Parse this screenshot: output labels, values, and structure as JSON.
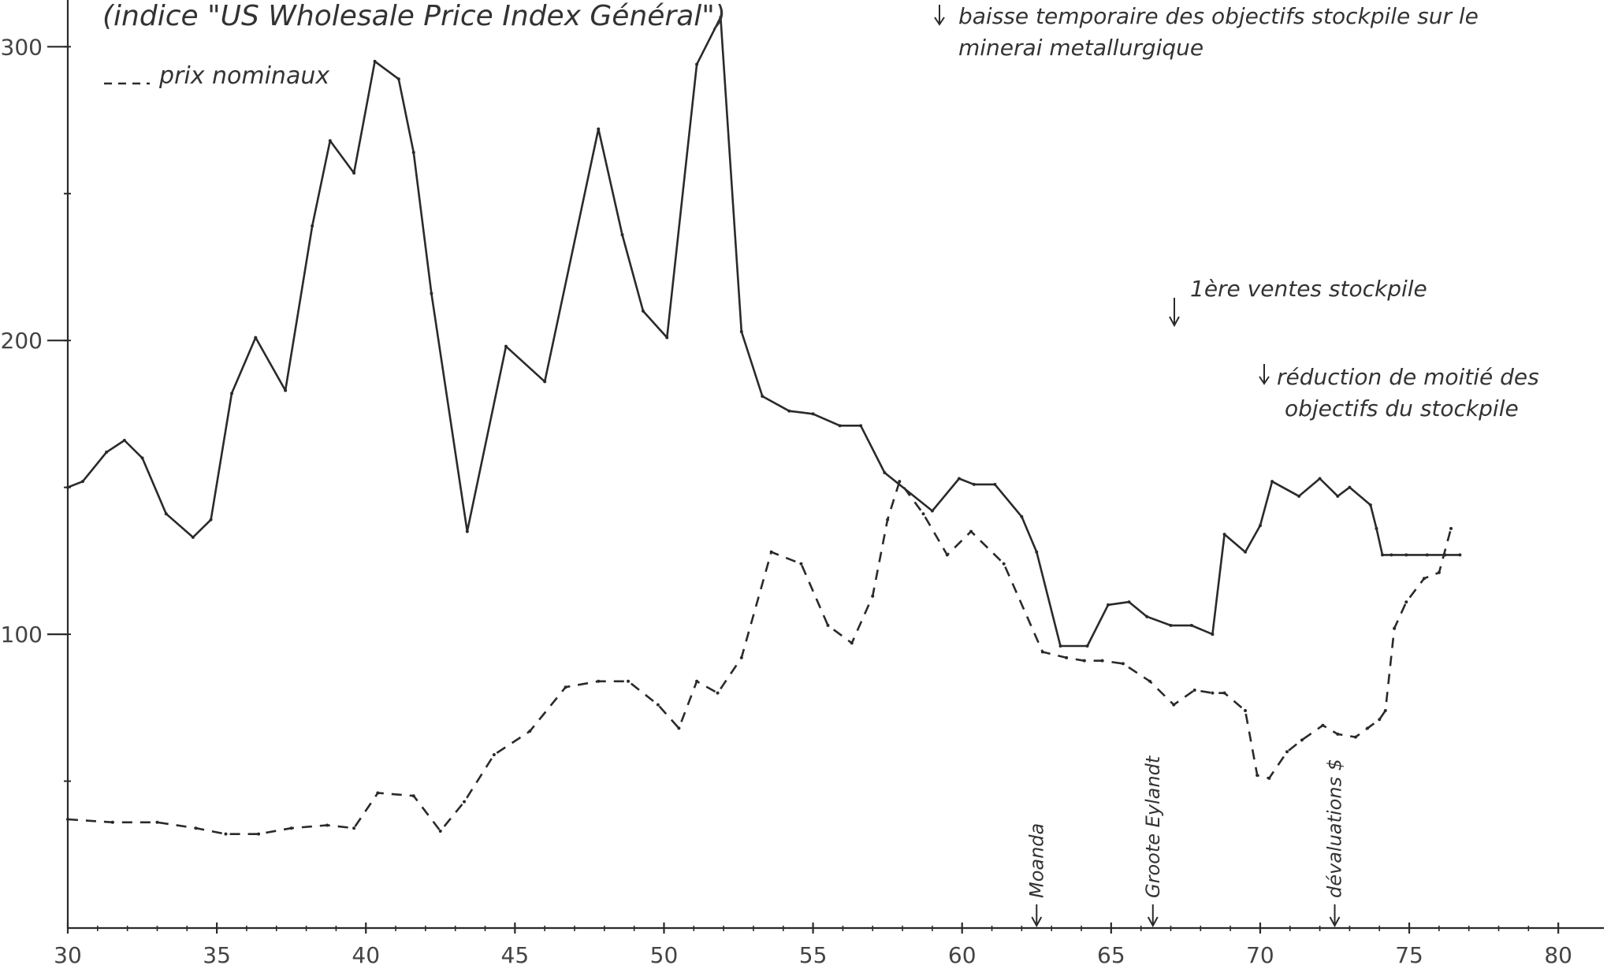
{
  "chart_data": {
    "type": "line",
    "title": "(indice \"US Wholesale Price Index Général\")",
    "xlabel": "",
    "ylabel": "",
    "xlim": [
      30,
      81
    ],
    "ylim": [
      0,
      310
    ],
    "x_ticks": [
      30,
      35,
      40,
      45,
      50,
      55,
      60,
      65,
      70,
      75,
      80
    ],
    "x_tick_labels": [
      "30",
      "35",
      "40",
      "45",
      "50",
      "55",
      "60",
      "65",
      "70",
      "75",
      "80"
    ],
    "y_ticks": [
      100,
      200,
      300
    ],
    "y_tick_labels": [
      "100",
      "200",
      "300"
    ],
    "grid": false,
    "series": [
      {
        "name": "",
        "style": "solid",
        "x": [
          30,
          30.5,
          31.3,
          31.9,
          32.5,
          33.3,
          34.2,
          34.8,
          35.5,
          36.3,
          37.3,
          38.2,
          38.8,
          39.6,
          40.3,
          41.1,
          41.6,
          42.2,
          43.4,
          44.7,
          46,
          47.8,
          48.6,
          49.3,
          50.1,
          51.1,
          51.9,
          52.6,
          53.3,
          54.2,
          55,
          55.9,
          56.6,
          57.4,
          59,
          59.9,
          60.4,
          61.1,
          62,
          62.5,
          63.3,
          64.2,
          64.9,
          65.6,
          66.2,
          67,
          67.7,
          68.4,
          68.8,
          69.5,
          70,
          70.4,
          71.3,
          72,
          72.6,
          73,
          73.7,
          73.9,
          74.1,
          74.4,
          74.9,
          75.6,
          76.2,
          76.7
        ],
        "y": [
          150,
          152,
          162,
          166,
          160,
          141,
          133,
          139,
          182,
          201,
          183,
          239,
          268,
          257,
          295,
          289,
          264,
          216,
          135,
          198,
          186,
          272,
          236,
          210,
          201,
          294,
          310,
          203,
          181,
          176,
          175,
          171,
          171,
          155,
          142,
          153,
          151,
          151,
          140,
          128,
          96,
          96,
          110,
          111,
          106,
          103,
          103,
          100,
          134,
          128,
          137,
          152,
          147,
          153,
          147,
          150,
          144,
          136,
          127,
          127,
          127,
          127,
          127,
          127
        ]
      },
      {
        "name": "prix nominaux",
        "style": "dashed",
        "x": [
          30,
          31.5,
          33,
          34.3,
          35.3,
          36.4,
          37.5,
          38.7,
          39.6,
          40.4,
          41.6,
          42.5,
          43.3,
          44.3,
          45.5,
          46.7,
          47.8,
          48.8,
          49.8,
          50.5,
          51.1,
          51.8,
          52.6,
          53.6,
          54.6,
          55.5,
          56.3,
          57,
          57.5,
          57.9,
          58.7,
          59.5,
          60.3,
          61.4,
          62.7,
          63.5,
          64.1,
          64.7,
          65.4,
          66.3,
          67.1,
          67.8,
          68.4,
          68.8,
          69.5,
          69.9,
          70.3,
          70.9,
          71.4,
          72.1,
          72.6,
          73.2,
          73.6,
          74,
          74.2,
          74.5,
          74.9,
          75.5,
          76,
          76.4
        ],
        "y": [
          37,
          36,
          36,
          34,
          32,
          32,
          34,
          35,
          34,
          46,
          45,
          33,
          43,
          59,
          67,
          82,
          84,
          84,
          76,
          68,
          84,
          80,
          92,
          128,
          124,
          103,
          97,
          113,
          139,
          152,
          141,
          127,
          135,
          124,
          94,
          92,
          91,
          91,
          90,
          84,
          76,
          81,
          80,
          80,
          74,
          52,
          51,
          60,
          64,
          69,
          66,
          65,
          68,
          71,
          74,
          102,
          111,
          119,
          121,
          136
        ]
      }
    ],
    "legend": {
      "entries": [
        {
          "label": "prix nominaux",
          "style": "dashed"
        }
      ],
      "position": "top-left"
    },
    "annotations": [
      {
        "text": "baisse temporaire des objectifs stockpile sur le",
        "x": 57.4
      },
      {
        "text": "minerai metallurgique",
        "x": 57.4
      },
      {
        "text": "1ère ventes stockpile",
        "x": 66.5
      },
      {
        "text": "réduction de moitié des",
        "x": 72
      },
      {
        "text": "objectifs du stockpile",
        "x": 72
      }
    ],
    "events": [
      {
        "label": "Moanda",
        "x": 62.5
      },
      {
        "label": "Groote Eylandt",
        "x": 66.4
      },
      {
        "label": "dévaluations $",
        "x": 72.5
      }
    ]
  }
}
